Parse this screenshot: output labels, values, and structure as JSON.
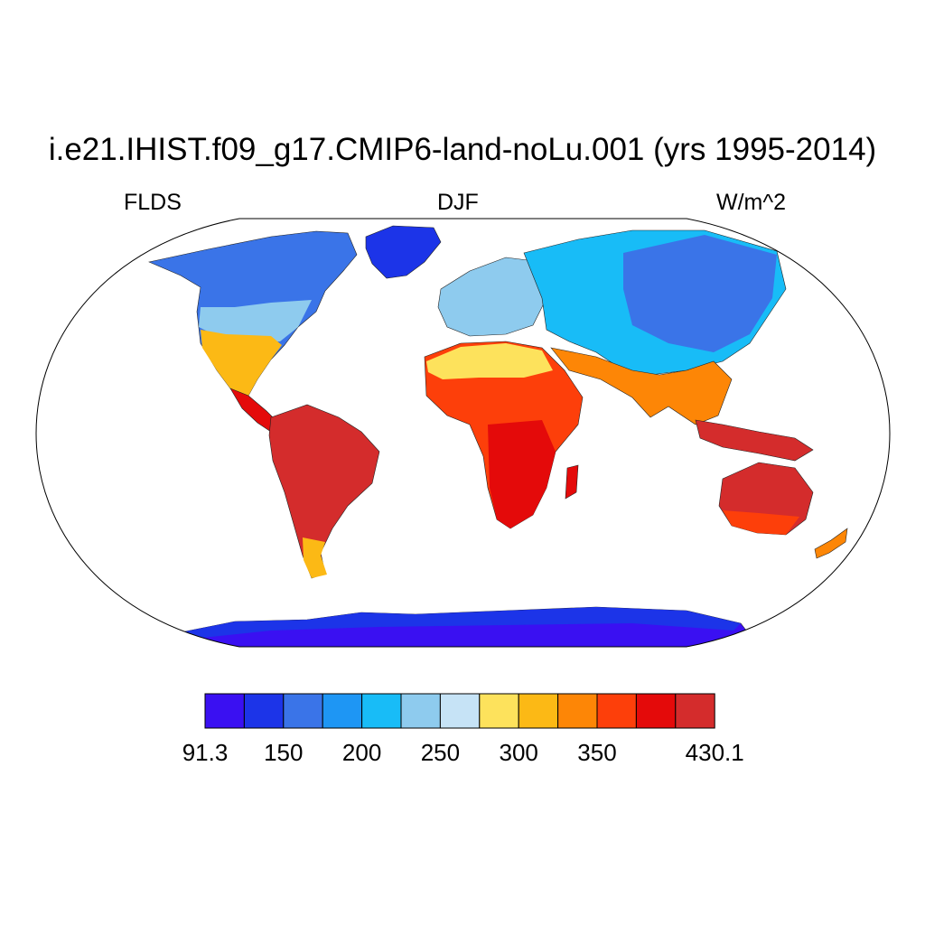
{
  "title": "i.e21.IHIST.f09_g17.CMIP6-land-noLu.001 (yrs 1995-2014)",
  "subtitle_left": "FLDS",
  "subtitle_center": "DJF",
  "subtitle_right": "W/m^2",
  "projection": "Robinson",
  "colorbar": {
    "colors": [
      "#3a10f2",
      "#1c34e8",
      "#3a74e8",
      "#1e96f4",
      "#18bcf7",
      "#8ecbee",
      "#c6e3f6",
      "#fde25c",
      "#fcb915",
      "#fd8606",
      "#fd3f0a",
      "#e40a0a",
      "#d42c2c"
    ],
    "labels": [
      {
        "text": "91.3",
        "boundary": 0
      },
      {
        "text": "150",
        "boundary": 1
      },
      {
        "text": "200",
        "boundary": 2
      },
      {
        "text": "250",
        "boundary": 3
      },
      {
        "text": "300",
        "boundary": 4
      },
      {
        "text": "350",
        "boundary": 5
      },
      {
        "text": "430.1",
        "boundary": 6.5
      }
    ]
  }
}
